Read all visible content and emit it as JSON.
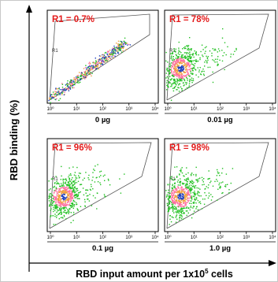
{
  "figure": {
    "y_axis_label": "RBD binding (%)",
    "x_axis_label_main": "RBD input amount per 1x10",
    "x_axis_label_sup": "5",
    "x_axis_label_tail": " cells"
  },
  "chart_data": [
    {
      "type": "scatter",
      "xlabel": "0 µg",
      "gate_label": "R1",
      "annotation": "R1 = 0.7%",
      "r1_percent": 0.7,
      "xscale": "log",
      "xlim": [
        1,
        10000
      ],
      "x_ticks": [
        "10⁰",
        "10¹",
        "10²",
        "10³",
        "10⁴"
      ],
      "grid": false,
      "density": "narrow diagonal band from 10⁰ to ~10²·⁵, mostly outside gate"
    },
    {
      "type": "scatter",
      "xlabel": "0.01 µg",
      "gate_label": "R1",
      "annotation": "R1 = 78%",
      "r1_percent": 78,
      "xscale": "log",
      "xlim": [
        1,
        10000
      ],
      "x_ticks": [
        "10⁰",
        "10¹",
        "10²",
        "10³",
        "10⁴"
      ],
      "grid": false,
      "density": "broad cloud centred near 10¹, largely inside gate"
    },
    {
      "type": "scatter",
      "xlabel": "0.1 µg",
      "gate_label": "R1",
      "annotation": "R1 = 96%",
      "r1_percent": 96,
      "xscale": "log",
      "xlim": [
        1,
        10000
      ],
      "x_ticks": [
        "10⁰",
        "10¹",
        "10²",
        "10³",
        "10⁴"
      ],
      "grid": false,
      "density": "broad cloud centred near 10¹, almost entirely inside gate"
    },
    {
      "type": "scatter",
      "xlabel": "1.0 µg",
      "gate_label": "R1",
      "annotation": "R1 = 98%",
      "r1_percent": 98,
      "xscale": "log",
      "xlim": [
        1,
        10000
      ],
      "x_ticks": [
        "10⁰",
        "10¹",
        "10²",
        "10³",
        "10⁴"
      ],
      "grid": false,
      "density": "broad cloud centred near 10¹, almost entirely inside gate"
    }
  ],
  "colors": {
    "annotation": "#e31b1b",
    "axis": "#000000",
    "gate": "#555555",
    "dot_outer": "#22c022",
    "dot_mid": "#ff6fa0",
    "dot_inner": "#f0a040",
    "dot_core": "#1f3fbf"
  }
}
